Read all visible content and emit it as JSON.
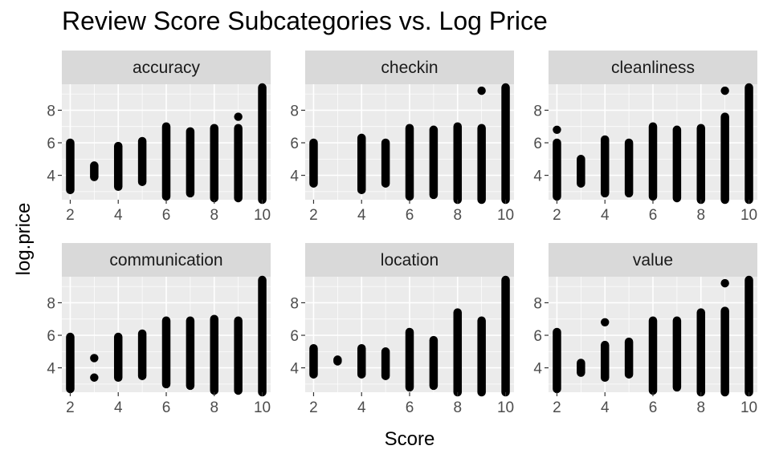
{
  "title": "Review Score Subcategories vs. Log Price",
  "chart_data": {
    "type": "scatter",
    "title": "Review Score Subcategories vs. Log Price",
    "xlabel": "Score",
    "ylabel": "log.price",
    "xlim": [
      1.65,
      10.35
    ],
    "ylim": [
      2.5,
      9.6
    ],
    "x_ticks": [
      2,
      4,
      6,
      8,
      10
    ],
    "y_ticks": [
      4,
      6,
      8
    ],
    "grid": true,
    "facets": [
      {
        "name": "accuracy",
        "points": [
          {
            "x": 2,
            "ymin": 3.1,
            "ymax": 6.0
          },
          {
            "x": 3,
            "ymin": 3.9,
            "ymax": 4.6
          },
          {
            "x": 4,
            "ymin": 3.3,
            "ymax": 5.8
          },
          {
            "x": 5,
            "ymin": 3.6,
            "ymax": 6.1
          },
          {
            "x": 6,
            "ymin": 2.7,
            "ymax": 7.0
          },
          {
            "x": 7,
            "ymin": 2.9,
            "ymax": 6.7
          },
          {
            "x": 8,
            "ymin": 2.6,
            "ymax": 6.9
          },
          {
            "x": 9,
            "ymin": 2.6,
            "ymax": 6.9
          },
          {
            "x": 9,
            "ymin": 7.6,
            "ymax": 7.6
          },
          {
            "x": 10,
            "ymin": 2.5,
            "ymax": 9.4
          }
        ]
      },
      {
        "name": "checkin",
        "points": [
          {
            "x": 2,
            "ymin": 3.5,
            "ymax": 6.0
          },
          {
            "x": 4,
            "ymin": 3.1,
            "ymax": 6.3
          },
          {
            "x": 5,
            "ymin": 3.5,
            "ymax": 6.0
          },
          {
            "x": 6,
            "ymin": 2.7,
            "ymax": 6.9
          },
          {
            "x": 7,
            "ymin": 2.8,
            "ymax": 6.8
          },
          {
            "x": 8,
            "ymin": 2.5,
            "ymax": 7.0
          },
          {
            "x": 9,
            "ymin": 2.5,
            "ymax": 6.9
          },
          {
            "x": 9,
            "ymin": 9.2,
            "ymax": 9.2
          },
          {
            "x": 10,
            "ymin": 2.5,
            "ymax": 9.4
          }
        ]
      },
      {
        "name": "cleanliness",
        "points": [
          {
            "x": 2,
            "ymin": 2.7,
            "ymax": 6.0
          },
          {
            "x": 2,
            "ymin": 6.8,
            "ymax": 6.8
          },
          {
            "x": 3,
            "ymin": 3.5,
            "ymax": 5.0
          },
          {
            "x": 4,
            "ymin": 2.9,
            "ymax": 6.2
          },
          {
            "x": 5,
            "ymin": 2.9,
            "ymax": 6.0
          },
          {
            "x": 6,
            "ymin": 2.7,
            "ymax": 7.0
          },
          {
            "x": 7,
            "ymin": 2.6,
            "ymax": 6.8
          },
          {
            "x": 8,
            "ymin": 2.5,
            "ymax": 6.9
          },
          {
            "x": 9,
            "ymin": 2.5,
            "ymax": 7.6
          },
          {
            "x": 9,
            "ymin": 9.2,
            "ymax": 9.2
          },
          {
            "x": 10,
            "ymin": 2.5,
            "ymax": 9.4
          }
        ]
      },
      {
        "name": "communication",
        "points": [
          {
            "x": 2,
            "ymin": 2.7,
            "ymax": 5.9
          },
          {
            "x": 3,
            "ymin": 3.4,
            "ymax": 3.4
          },
          {
            "x": 3,
            "ymin": 4.6,
            "ymax": 4.6
          },
          {
            "x": 4,
            "ymin": 3.4,
            "ymax": 5.9
          },
          {
            "x": 5,
            "ymin": 3.5,
            "ymax": 6.1
          },
          {
            "x": 6,
            "ymin": 3.0,
            "ymax": 6.9
          },
          {
            "x": 7,
            "ymin": 2.9,
            "ymax": 6.9
          },
          {
            "x": 8,
            "ymin": 2.6,
            "ymax": 7.0
          },
          {
            "x": 9,
            "ymin": 2.6,
            "ymax": 6.9
          },
          {
            "x": 10,
            "ymin": 2.5,
            "ymax": 9.4
          }
        ]
      },
      {
        "name": "location",
        "points": [
          {
            "x": 2,
            "ymin": 3.6,
            "ymax": 5.2
          },
          {
            "x": 3,
            "ymin": 4.4,
            "ymax": 4.5
          },
          {
            "x": 4,
            "ymin": 3.6,
            "ymax": 5.2
          },
          {
            "x": 5,
            "ymin": 3.5,
            "ymax": 5.0
          },
          {
            "x": 6,
            "ymin": 2.8,
            "ymax": 6.2
          },
          {
            "x": 7,
            "ymin": 2.9,
            "ymax": 5.7
          },
          {
            "x": 8,
            "ymin": 2.5,
            "ymax": 7.4
          },
          {
            "x": 9,
            "ymin": 2.5,
            "ymax": 6.9
          },
          {
            "x": 10,
            "ymin": 2.5,
            "ymax": 9.4
          }
        ]
      },
      {
        "name": "value",
        "points": [
          {
            "x": 2,
            "ymin": 2.7,
            "ymax": 6.2
          },
          {
            "x": 3,
            "ymin": 3.7,
            "ymax": 4.3
          },
          {
            "x": 4,
            "ymin": 3.4,
            "ymax": 5.4
          },
          {
            "x": 4,
            "ymin": 6.8,
            "ymax": 6.8
          },
          {
            "x": 5,
            "ymin": 3.6,
            "ymax": 5.6
          },
          {
            "x": 6,
            "ymin": 2.6,
            "ymax": 6.9
          },
          {
            "x": 7,
            "ymin": 2.8,
            "ymax": 6.9
          },
          {
            "x": 8,
            "ymin": 2.5,
            "ymax": 7.4
          },
          {
            "x": 9,
            "ymin": 2.5,
            "ymax": 7.5
          },
          {
            "x": 9,
            "ymin": 9.2,
            "ymax": 9.2
          },
          {
            "x": 10,
            "ymin": 2.5,
            "ymax": 9.4
          }
        ]
      }
    ]
  },
  "colors": {
    "panel_bg": "#ebebeb",
    "grid_major": "#ffffff",
    "strip_bg": "#d9d9d9",
    "point": "#000000",
    "tick_text": "#4d4d4d"
  }
}
